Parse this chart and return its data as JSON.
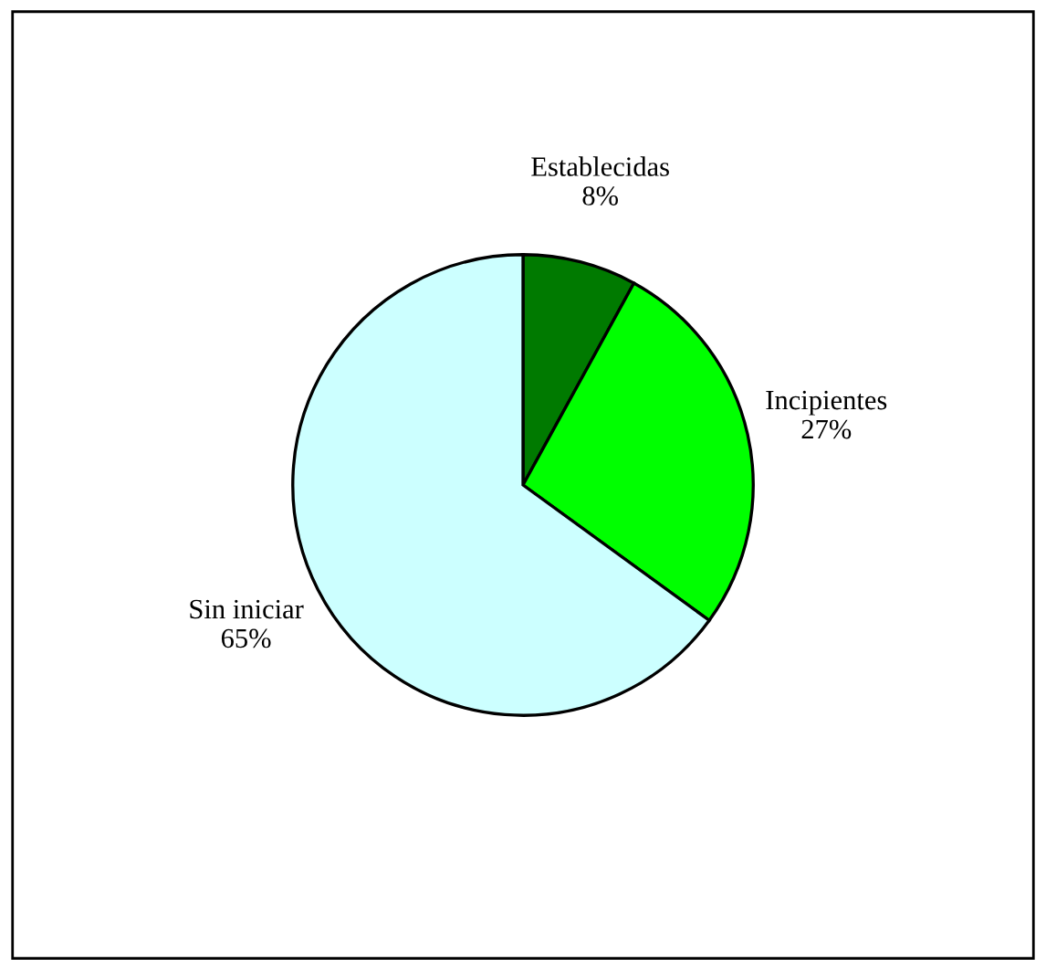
{
  "chart_data": {
    "type": "pie",
    "categories": [
      "Establecidas",
      "Incipientes",
      "Sin iniciar"
    ],
    "values": [
      8,
      27,
      65
    ],
    "colors": [
      "#007a00",
      "#00ff00",
      "#ccffff"
    ],
    "value_labels": [
      "8%",
      "27%",
      "65%"
    ],
    "legend": false
  }
}
